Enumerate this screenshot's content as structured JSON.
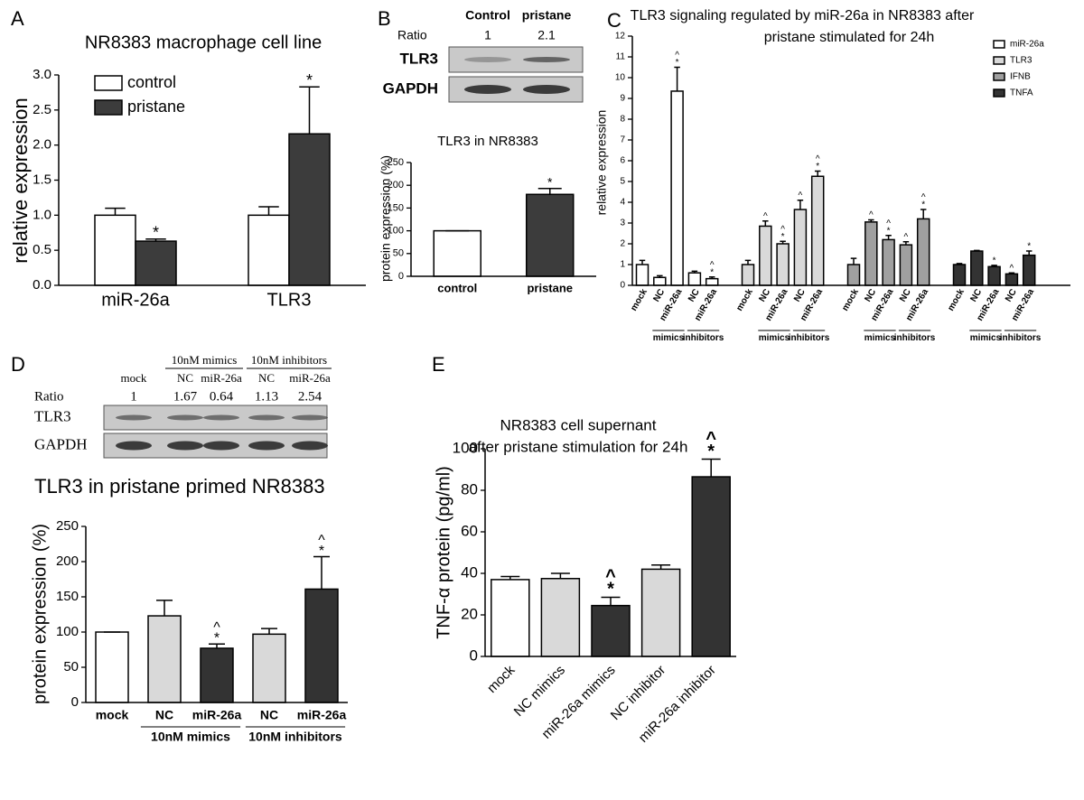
{
  "panel_labels": [
    "A",
    "B",
    "C",
    "D",
    "E"
  ],
  "blots": [
    {
      "columns": [
        "Control",
        "pristane"
      ],
      "ratio_label": "Ratio",
      "ratios": [
        1,
        2.1
      ],
      "rows": [
        "TLR3",
        "GAPDH"
      ]
    },
    {
      "column_groups": [
        null,
        "10nM mimics",
        "10nM mimics",
        "10nM inhibitors",
        "10nM inhibitors"
      ],
      "columns": [
        "mock",
        "NC",
        "miR-26a",
        "NC",
        "miR-26a"
      ],
      "ratio_label": "Ratio",
      "ratios": [
        1,
        1.67,
        0.64,
        1.13,
        2.54
      ],
      "rows": [
        "TLR3",
        "GAPDH"
      ]
    }
  ],
  "chart_data": [
    {
      "type": "bar",
      "title": [
        "NR8383 macrophage cell line"
      ],
      "y_label": "relative expression",
      "categories": [
        "miR-26a",
        "TLR3"
      ],
      "series": [
        {
          "name": "control",
          "color": "#ffffff",
          "values": [
            1.0,
            1.0
          ],
          "errors": [
            0.1,
            0.12
          ],
          "significance": [
            null,
            null
          ]
        },
        {
          "name": "pristane",
          "color": "#3c3c3c",
          "values": [
            0.63,
            2.16
          ],
          "errors": [
            0.03,
            0.67
          ],
          "significance": [
            "*",
            "*"
          ]
        }
      ],
      "ylim": [
        0,
        3
      ],
      "yticks": [
        {
          "value": 0,
          "label": "0.0"
        },
        0.5,
        {
          "value": 1,
          "label": "1.0"
        },
        1.5,
        {
          "value": 2,
          "label": "2.0"
        },
        2.5,
        {
          "value": 3,
          "label": "3.0"
        }
      ],
      "legend": "upper left"
    },
    {
      "type": "bar",
      "title": [
        "TLR3 in NR8383"
      ],
      "y_label": "protein expression (%)",
      "categories": [
        "control",
        "pristane"
      ],
      "values": [
        100,
        180
      ],
      "errors": [
        0,
        13
      ],
      "colors": [
        "#ffffff",
        "#3c3c3c"
      ],
      "significance": [
        null,
        "*"
      ],
      "ylim": [
        0,
        250
      ],
      "yticks": [
        0,
        50,
        100,
        150,
        200,
        250
      ]
    },
    {
      "type": "bar",
      "title": [
        "TLR3 signaling regulated by miR-26a in NR8383 after",
        "pristane stimulated for 24h"
      ],
      "y_label": "relative expression",
      "categories": [
        "mock",
        "NC",
        "miR-26a",
        "NC",
        "miR-26a"
      ],
      "category_groups": [
        null,
        "mimics",
        "mimics",
        "inhibitors",
        "inhibitors"
      ],
      "series": [
        {
          "name": "miR-26a",
          "color": "#ffffff",
          "values": [
            1.0,
            0.38,
            9.35,
            0.6,
            0.32
          ],
          "errors": [
            0.2,
            0.08,
            1.15,
            0.08,
            0.08
          ],
          "significance": [
            null,
            null,
            [
              "^",
              "*"
            ],
            null,
            [
              "^",
              "*"
            ]
          ]
        },
        {
          "name": "TLR3",
          "color": "#d9d9d9",
          "values": [
            1.0,
            2.85,
            2.0,
            3.65,
            5.25
          ],
          "errors": [
            0.2,
            0.25,
            0.12,
            0.45,
            0.25
          ],
          "significance": [
            null,
            "^",
            [
              "^",
              "*"
            ],
            "^",
            [
              "^",
              "*"
            ]
          ]
        },
        {
          "name": "IFNB",
          "color": "#a0a0a0",
          "values": [
            1.0,
            3.05,
            2.2,
            1.95,
            3.2
          ],
          "errors": [
            0.3,
            0.1,
            0.2,
            0.15,
            0.45
          ],
          "significance": [
            null,
            "^",
            [
              "^",
              "*"
            ],
            "^",
            [
              "^",
              "*"
            ]
          ]
        },
        {
          "name": "TNFA",
          "color": "#333333",
          "values": [
            1.0,
            1.65,
            0.9,
            0.55,
            1.45
          ],
          "errors": [
            0.05,
            0.03,
            0.06,
            0.05,
            0.2
          ],
          "significance": [
            null,
            null,
            "*",
            "^",
            "*"
          ]
        }
      ],
      "ylim": [
        0,
        12
      ],
      "yticks": [
        0,
        1,
        2,
        3,
        4,
        5,
        6,
        7,
        8,
        9,
        10,
        11,
        12
      ],
      "legend": "upper right"
    },
    {
      "type": "bar",
      "title": [
        "TLR3 in pristane primed NR8383"
      ],
      "y_label": "protein expression (%)",
      "categories": [
        "mock",
        "NC",
        "miR-26a",
        "NC",
        "miR-26a"
      ],
      "category_groups": [
        null,
        "10nM mimics",
        "10nM mimics",
        "10nM inhibitors",
        "10nM inhibitors"
      ],
      "values": [
        100,
        123,
        77,
        97,
        161
      ],
      "errors": [
        0,
        22,
        6,
        8,
        46
      ],
      "colors": [
        "#ffffff",
        "#d9d9d9",
        "#333333",
        "#d9d9d9",
        "#333333"
      ],
      "significance": [
        null,
        null,
        [
          "^",
          "*"
        ],
        null,
        [
          "^",
          "*"
        ]
      ],
      "ylim": [
        0,
        250
      ],
      "yticks": [
        0,
        50,
        100,
        150,
        200,
        250
      ]
    },
    {
      "type": "bar",
      "title": [
        "NR8383 cell supernant",
        "after pristane stimulation for 24h"
      ],
      "y_label": "TNF-α protein (pg/ml)",
      "categories": [
        "mock",
        "NC mimics",
        "miR-26a mimics",
        "NC inhibitor",
        "miR-26a inhibitor"
      ],
      "values": [
        37,
        37.5,
        24.5,
        42,
        86.5
      ],
      "errors": [
        1.5,
        2.5,
        4,
        2,
        8.5
      ],
      "colors": [
        "#ffffff",
        "#d9d9d9",
        "#333333",
        "#d9d9d9",
        "#333333"
      ],
      "significance": [
        null,
        null,
        [
          "^",
          "*"
        ],
        null,
        [
          "^",
          "*"
        ]
      ],
      "ylim": [
        0,
        100
      ],
      "yticks": [
        0,
        20,
        40,
        60,
        80,
        100
      ]
    }
  ]
}
